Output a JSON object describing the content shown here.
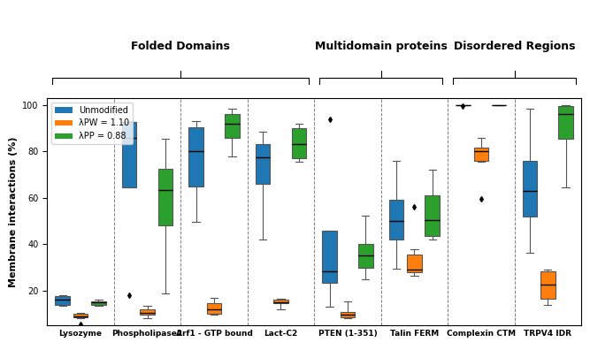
{
  "chart_data": {
    "type": "box",
    "y_label": "Membrane interactions (%)",
    "categories": [
      "Lysozyme",
      "Phospholipase2",
      "Arf1 - GTP bound",
      "Lact-C2",
      "PTEN (1-351)",
      "Talin FERM",
      "Complexin CTM",
      "TRPV4 IDR"
    ],
    "groups": [
      {
        "name": "Folded Domains",
        "members": [
          "Lysozyme",
          "Phospholipase2",
          "Arf1 - GTP bound",
          "Lact-C2"
        ]
      },
      {
        "name": "Multidomain proteins",
        "members": [
          "PTEN (1-351)",
          "Talin FERM"
        ]
      },
      {
        "name": "Disordered Regions",
        "members": [
          "Complexin CTM",
          "TRPV4 IDR"
        ]
      }
    ],
    "ylim": [
      5,
      103
    ],
    "yticks": [
      20,
      40,
      60,
      80,
      100
    ],
    "legend": "upper left",
    "series": [
      {
        "name": "Unmodified",
        "color": "#1f77b4",
        "boxes": [
          {
            "low": 13.5,
            "q1": 14,
            "median": 16,
            "q3": 17.5,
            "high": 18,
            "outliers": []
          },
          {
            "low": 64.5,
            "q1": 64.5,
            "median": 86,
            "q3": 92.5,
            "high": 93,
            "outliers": [
              18
            ]
          },
          {
            "low": 49.5,
            "q1": 65,
            "median": 80,
            "q3": 90.5,
            "high": 93,
            "outliers": []
          },
          {
            "low": 42,
            "q1": 66,
            "median": 77.5,
            "q3": 83,
            "high": 88.5,
            "outliers": []
          },
          {
            "low": 13,
            "q1": 23.5,
            "median": 28.5,
            "q3": 46,
            "high": 46,
            "outliers": [
              94
            ]
          },
          {
            "low": 29.5,
            "q1": 42,
            "median": 50,
            "q3": 59,
            "high": 76,
            "outliers": []
          },
          {
            "low": 100,
            "q1": 100,
            "median": 100,
            "q3": 100,
            "high": 100,
            "outliers": [
              99.6
            ]
          },
          {
            "low": 36.5,
            "q1": 52,
            "median": 63,
            "q3": 76,
            "high": 98.5,
            "outliers": []
          }
        ]
      },
      {
        "name": "λPW = 1.10",
        "color": "#ff7f0e",
        "boxes": [
          {
            "low": 8,
            "q1": 8.5,
            "median": 9,
            "q3": 10,
            "high": 10.5,
            "outliers": [
              5.5
            ]
          },
          {
            "low": 8,
            "q1": 9.5,
            "median": 10.5,
            "q3": 12,
            "high": 13.5,
            "outliers": []
          },
          {
            "low": 9.5,
            "q1": 10,
            "median": 12,
            "q3": 14.5,
            "high": 17,
            "outliers": []
          },
          {
            "low": 12,
            "q1": 14.5,
            "median": 15,
            "q3": 16,
            "high": 16.5,
            "outliers": []
          },
          {
            "low": 8,
            "q1": 8.5,
            "median": 9.5,
            "q3": 11,
            "high": 15.5,
            "outliers": []
          },
          {
            "low": 26.5,
            "q1": 28,
            "median": 29,
            "q3": 35.5,
            "high": 38,
            "outliers": [
              56
            ]
          },
          {
            "low": 75.5,
            "q1": 76,
            "median": 80,
            "q3": 81.5,
            "high": 86,
            "outliers": [
              59.5
            ]
          },
          {
            "low": 14,
            "q1": 16.5,
            "median": 22.5,
            "q3": 28.5,
            "high": 29,
            "outliers": []
          }
        ]
      },
      {
        "name": "λPP = 0.88",
        "color": "#2ca02c",
        "boxes": [
          {
            "low": 13.5,
            "q1": 14,
            "median": 15,
            "q3": 15.5,
            "high": 16,
            "outliers": []
          },
          {
            "low": 19,
            "q1": 48,
            "median": 63.5,
            "q3": 72.5,
            "high": 85.5,
            "outliers": []
          },
          {
            "low": 78,
            "q1": 86,
            "median": 92,
            "q3": 96,
            "high": 98.5,
            "outliers": []
          },
          {
            "low": 75.5,
            "q1": 77,
            "median": 83,
            "q3": 90,
            "high": 92,
            "outliers": []
          },
          {
            "low": 25,
            "q1": 30,
            "median": 35,
            "q3": 40,
            "high": 52.5,
            "outliers": []
          },
          {
            "low": 42,
            "q1": 43.5,
            "median": 50.5,
            "q3": 61,
            "high": 72,
            "outliers": []
          },
          {
            "low": 100,
            "q1": 100,
            "median": 100,
            "q3": 100,
            "high": 100,
            "outliers": []
          },
          {
            "low": 64.5,
            "q1": 85.5,
            "median": 96,
            "q3": 99.5,
            "high": 100,
            "outliers": []
          }
        ]
      }
    ]
  }
}
